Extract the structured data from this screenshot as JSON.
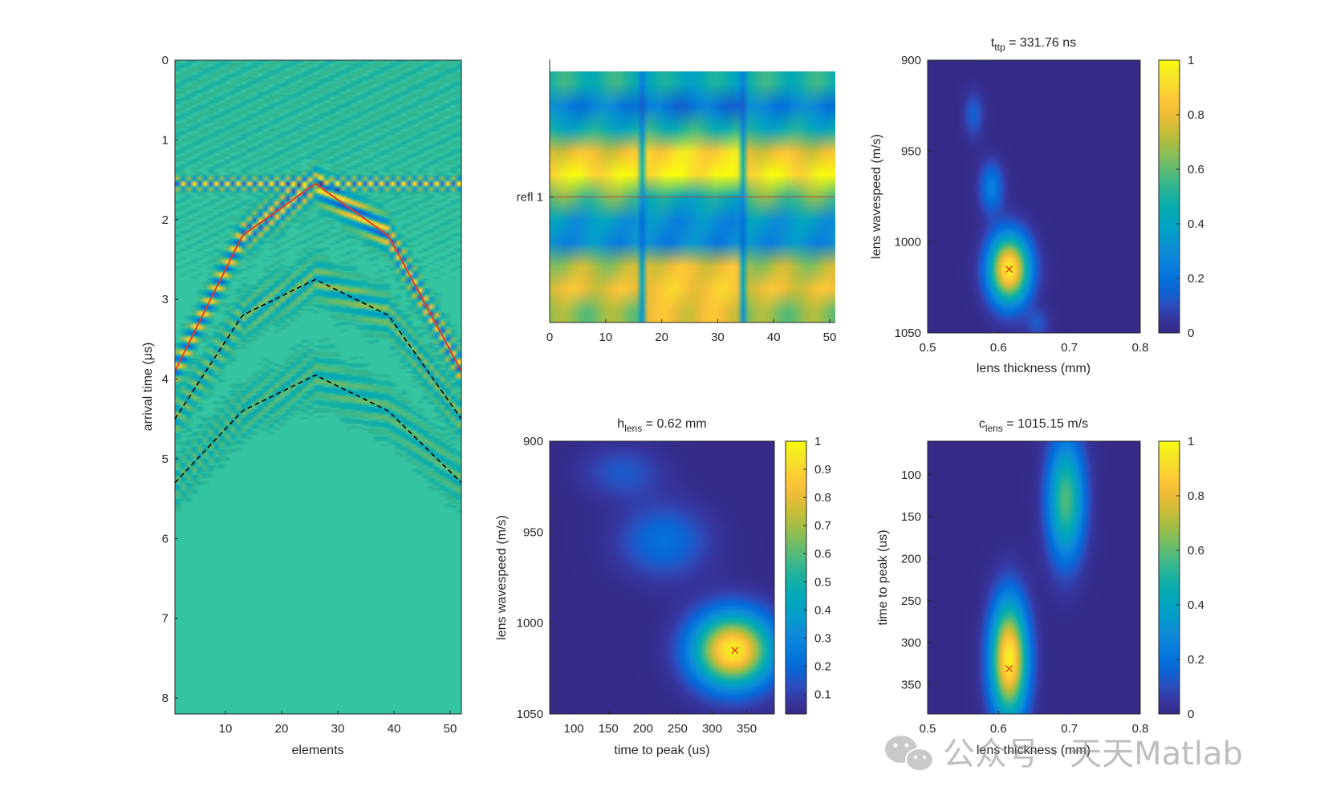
{
  "chart_data": [
    {
      "id": "bscan",
      "type": "heatmap",
      "xlabel": "elements",
      "ylabel": "arrival time (μs)",
      "x_ticks": [
        10,
        20,
        30,
        40,
        50
      ],
      "y_ticks": [
        0,
        1,
        2,
        3,
        4,
        5,
        6,
        7,
        8
      ],
      "xlim": [
        1,
        52
      ],
      "ylim": [
        0,
        8.2
      ],
      "y_reversed": true,
      "background_color": "#35c4a1",
      "surface_reflection_time": 1.55,
      "fitted_curve": {
        "color": "#d9412a",
        "x": [
          1,
          13,
          26,
          39,
          52
        ],
        "y": [
          3.9,
          2.2,
          1.55,
          2.2,
          3.9
        ]
      },
      "dashed_curves": [
        {
          "color": "#000000",
          "x": [
            1,
            13,
            26,
            39,
            52
          ],
          "y": [
            4.5,
            3.2,
            2.75,
            3.2,
            4.5
          ]
        },
        {
          "color": "#000000",
          "x": [
            1,
            13,
            26,
            39,
            52
          ],
          "y": [
            5.3,
            4.4,
            3.95,
            4.4,
            5.3
          ]
        }
      ]
    },
    {
      "id": "refl",
      "type": "heatmap",
      "x_ticks": [
        0,
        10,
        20,
        30,
        40,
        50
      ],
      "xlim": [
        0,
        51
      ],
      "row_label": "refl 1",
      "row_label_position": 0.5,
      "rows": 11,
      "columns": 51,
      "row_base_values": [
        0.5,
        0.25,
        0.45,
        0.8,
        0.95,
        0.6,
        0.35,
        0.3,
        0.7,
        0.8,
        0.65
      ],
      "row_middle_values": [
        0.45,
        0.2,
        0.5,
        0.9,
        0.97,
        0.45,
        0.3,
        0.28,
        0.8,
        0.85,
        0.8
      ],
      "boundary_columns": [
        17,
        34
      ]
    },
    {
      "id": "ttp_map",
      "type": "heatmap",
      "title_main": "t",
      "title_sub": "ttp",
      "title_rest": " = 331.76 ns",
      "xlabel": "lens thickness (mm)",
      "ylabel": "lens wavespeed (m/s)",
      "x_ticks": [
        0.5,
        0.6,
        0.7,
        0.8
      ],
      "y_ticks": [
        900,
        950,
        1000,
        1050
      ],
      "xlim": [
        0.5,
        0.8
      ],
      "ylim": [
        900,
        1050
      ],
      "y_reversed": true,
      "peak": {
        "x": 0.615,
        "y": 1015,
        "marker": "x",
        "color": "#e8241d"
      },
      "blobs": [
        {
          "x": 0.615,
          "y": 1015,
          "amp": 1.0,
          "sx": 0.02,
          "sy": 13,
          "rot": -0.6
        },
        {
          "x": 0.59,
          "y": 970,
          "amp": 0.25,
          "sx": 0.012,
          "sy": 10,
          "rot": -0.5
        },
        {
          "x": 0.565,
          "y": 930,
          "amp": 0.15,
          "sx": 0.01,
          "sy": 9,
          "rot": -0.5
        },
        {
          "x": 0.655,
          "y": 1045,
          "amp": 0.12,
          "sx": 0.012,
          "sy": 6,
          "rot": -0.5
        }
      ],
      "colorbar_ticks": [
        0,
        0.2,
        0.4,
        0.6,
        0.8,
        1
      ],
      "clim": [
        0,
        1
      ]
    },
    {
      "id": "hlens_map",
      "type": "heatmap",
      "title_main": "h",
      "title_sub": "lens",
      "title_rest": " = 0.62 mm",
      "xlabel": "time to peak (us)",
      "ylabel": "lens wavespeed (m/s)",
      "x_ticks": [
        100,
        150,
        200,
        250,
        300,
        350
      ],
      "y_ticks": [
        900,
        950,
        1000,
        1050
      ],
      "xlim": [
        65,
        390
      ],
      "ylim": [
        900,
        1050
      ],
      "y_reversed": true,
      "peak": {
        "x": 333,
        "y": 1015,
        "marker": "x",
        "color": "#e8241d"
      },
      "blobs": [
        {
          "x": 330,
          "y": 1015,
          "amp": 1.0,
          "sx": 40,
          "sy": 14,
          "rot": 0.35
        },
        {
          "x": 230,
          "y": 955,
          "amp": 0.2,
          "sx": 45,
          "sy": 14,
          "rot": 0.3
        },
        {
          "x": 170,
          "y": 917,
          "amp": 0.13,
          "sx": 40,
          "sy": 10,
          "rot": 0.3
        }
      ],
      "colorbar_ticks": [
        0.1,
        0.2,
        0.3,
        0.4,
        0.5,
        0.6,
        0.7,
        0.8,
        0.9,
        1
      ],
      "clim": [
        0.03,
        1
      ]
    },
    {
      "id": "clens_map",
      "type": "heatmap",
      "title_main": "c",
      "title_sub": "lens",
      "title_rest": " = 1015.15 m/s",
      "xlabel": "lens thickness (mm)",
      "ylabel": "time to peak (us)",
      "x_ticks": [
        0.5,
        0.6,
        0.7,
        0.8
      ],
      "y_ticks": [
        100,
        150,
        200,
        250,
        300,
        350
      ],
      "xlim": [
        0.5,
        0.8
      ],
      "ylim": [
        60,
        385
      ],
      "y_reversed": true,
      "peak": {
        "x": 0.615,
        "y": 331,
        "marker": "x",
        "color": "#e8241d"
      },
      "blobs": [
        {
          "x": 0.615,
          "y": 320,
          "amp": 1.0,
          "sx": 0.018,
          "sy": 48,
          "rot": -0.18
        },
        {
          "x": 0.695,
          "y": 130,
          "amp": 0.6,
          "sx": 0.018,
          "sy": 50,
          "rot": -0.18
        }
      ],
      "colorbar_ticks": [
        0,
        0.2,
        0.4,
        0.6,
        0.8,
        1
      ],
      "clim": [
        0,
        1
      ]
    }
  ],
  "watermark": {
    "text": "公众号 · 天天Matlab"
  }
}
